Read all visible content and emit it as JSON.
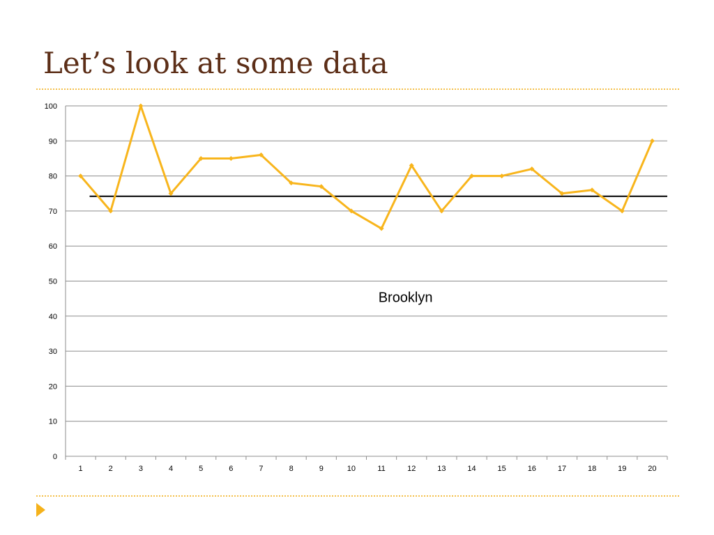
{
  "slide": {
    "title": "Let’s look at some data"
  },
  "colors": {
    "title": "#5c2e17",
    "accent": "#f5b21b",
    "series": "#f8b51c",
    "reference_line": "#000000",
    "gridline": "#8c8c8c"
  },
  "chart_data": {
    "type": "line",
    "title": "",
    "xlabel": "",
    "ylabel": "",
    "x": [
      "1",
      "2",
      "3",
      "4",
      "5",
      "6",
      "7",
      "8",
      "9",
      "10",
      "11",
      "12",
      "13",
      "14",
      "15",
      "16",
      "17",
      "18",
      "19",
      "20"
    ],
    "series": [
      {
        "values": [
          80,
          70,
          100,
          75,
          85,
          85,
          86,
          78,
          77,
          70,
          65,
          83,
          70,
          80,
          80,
          82,
          75,
          76,
          70,
          90
        ],
        "marker": "diamond"
      }
    ],
    "reference_line": {
      "value": 74.2,
      "style": "solid black horizontal line"
    },
    "ylim": [
      0,
      100
    ],
    "yticks": [
      0,
      10,
      20,
      30,
      40,
      50,
      60,
      70,
      80,
      90,
      100
    ],
    "grid": true,
    "legend": "none",
    "annotations": [
      {
        "text": "Brooklyn",
        "x": 11.8,
        "y": 44
      }
    ]
  }
}
